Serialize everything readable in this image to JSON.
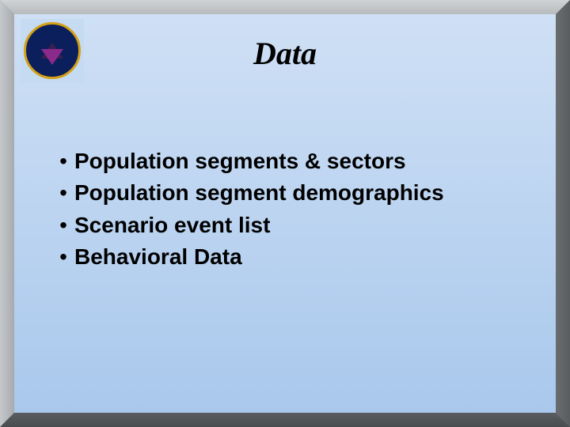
{
  "slide": {
    "title": "Data",
    "title_font": "Times New Roman",
    "title_style": "italic bold",
    "title_fontsize": 40,
    "title_color": "#000000",
    "background_gradient": {
      "top": "#cfe0f5",
      "bottom": "#a9c8ec"
    },
    "bullets": [
      "Population segments & sectors",
      "Population segment demographics",
      "Scenario event list",
      "Behavioral Data"
    ],
    "bullet_fontsize": 28,
    "bullet_fontweight": "bold",
    "bullet_color": "#000000"
  },
  "frame": {
    "bevel_width": 18,
    "light_color": "#c5c8ca",
    "mid_color": "#8a8d8f",
    "dark_color": "#4a4d4f"
  },
  "logo": {
    "name": "operations-analysis-division-seal",
    "outer_ring_color": "#0a1f5c",
    "border_color": "#d4a017",
    "inner_symbol_colors": [
      "#3a2050",
      "#8a2a8a"
    ],
    "badge_bg": "#c5dbf2"
  }
}
